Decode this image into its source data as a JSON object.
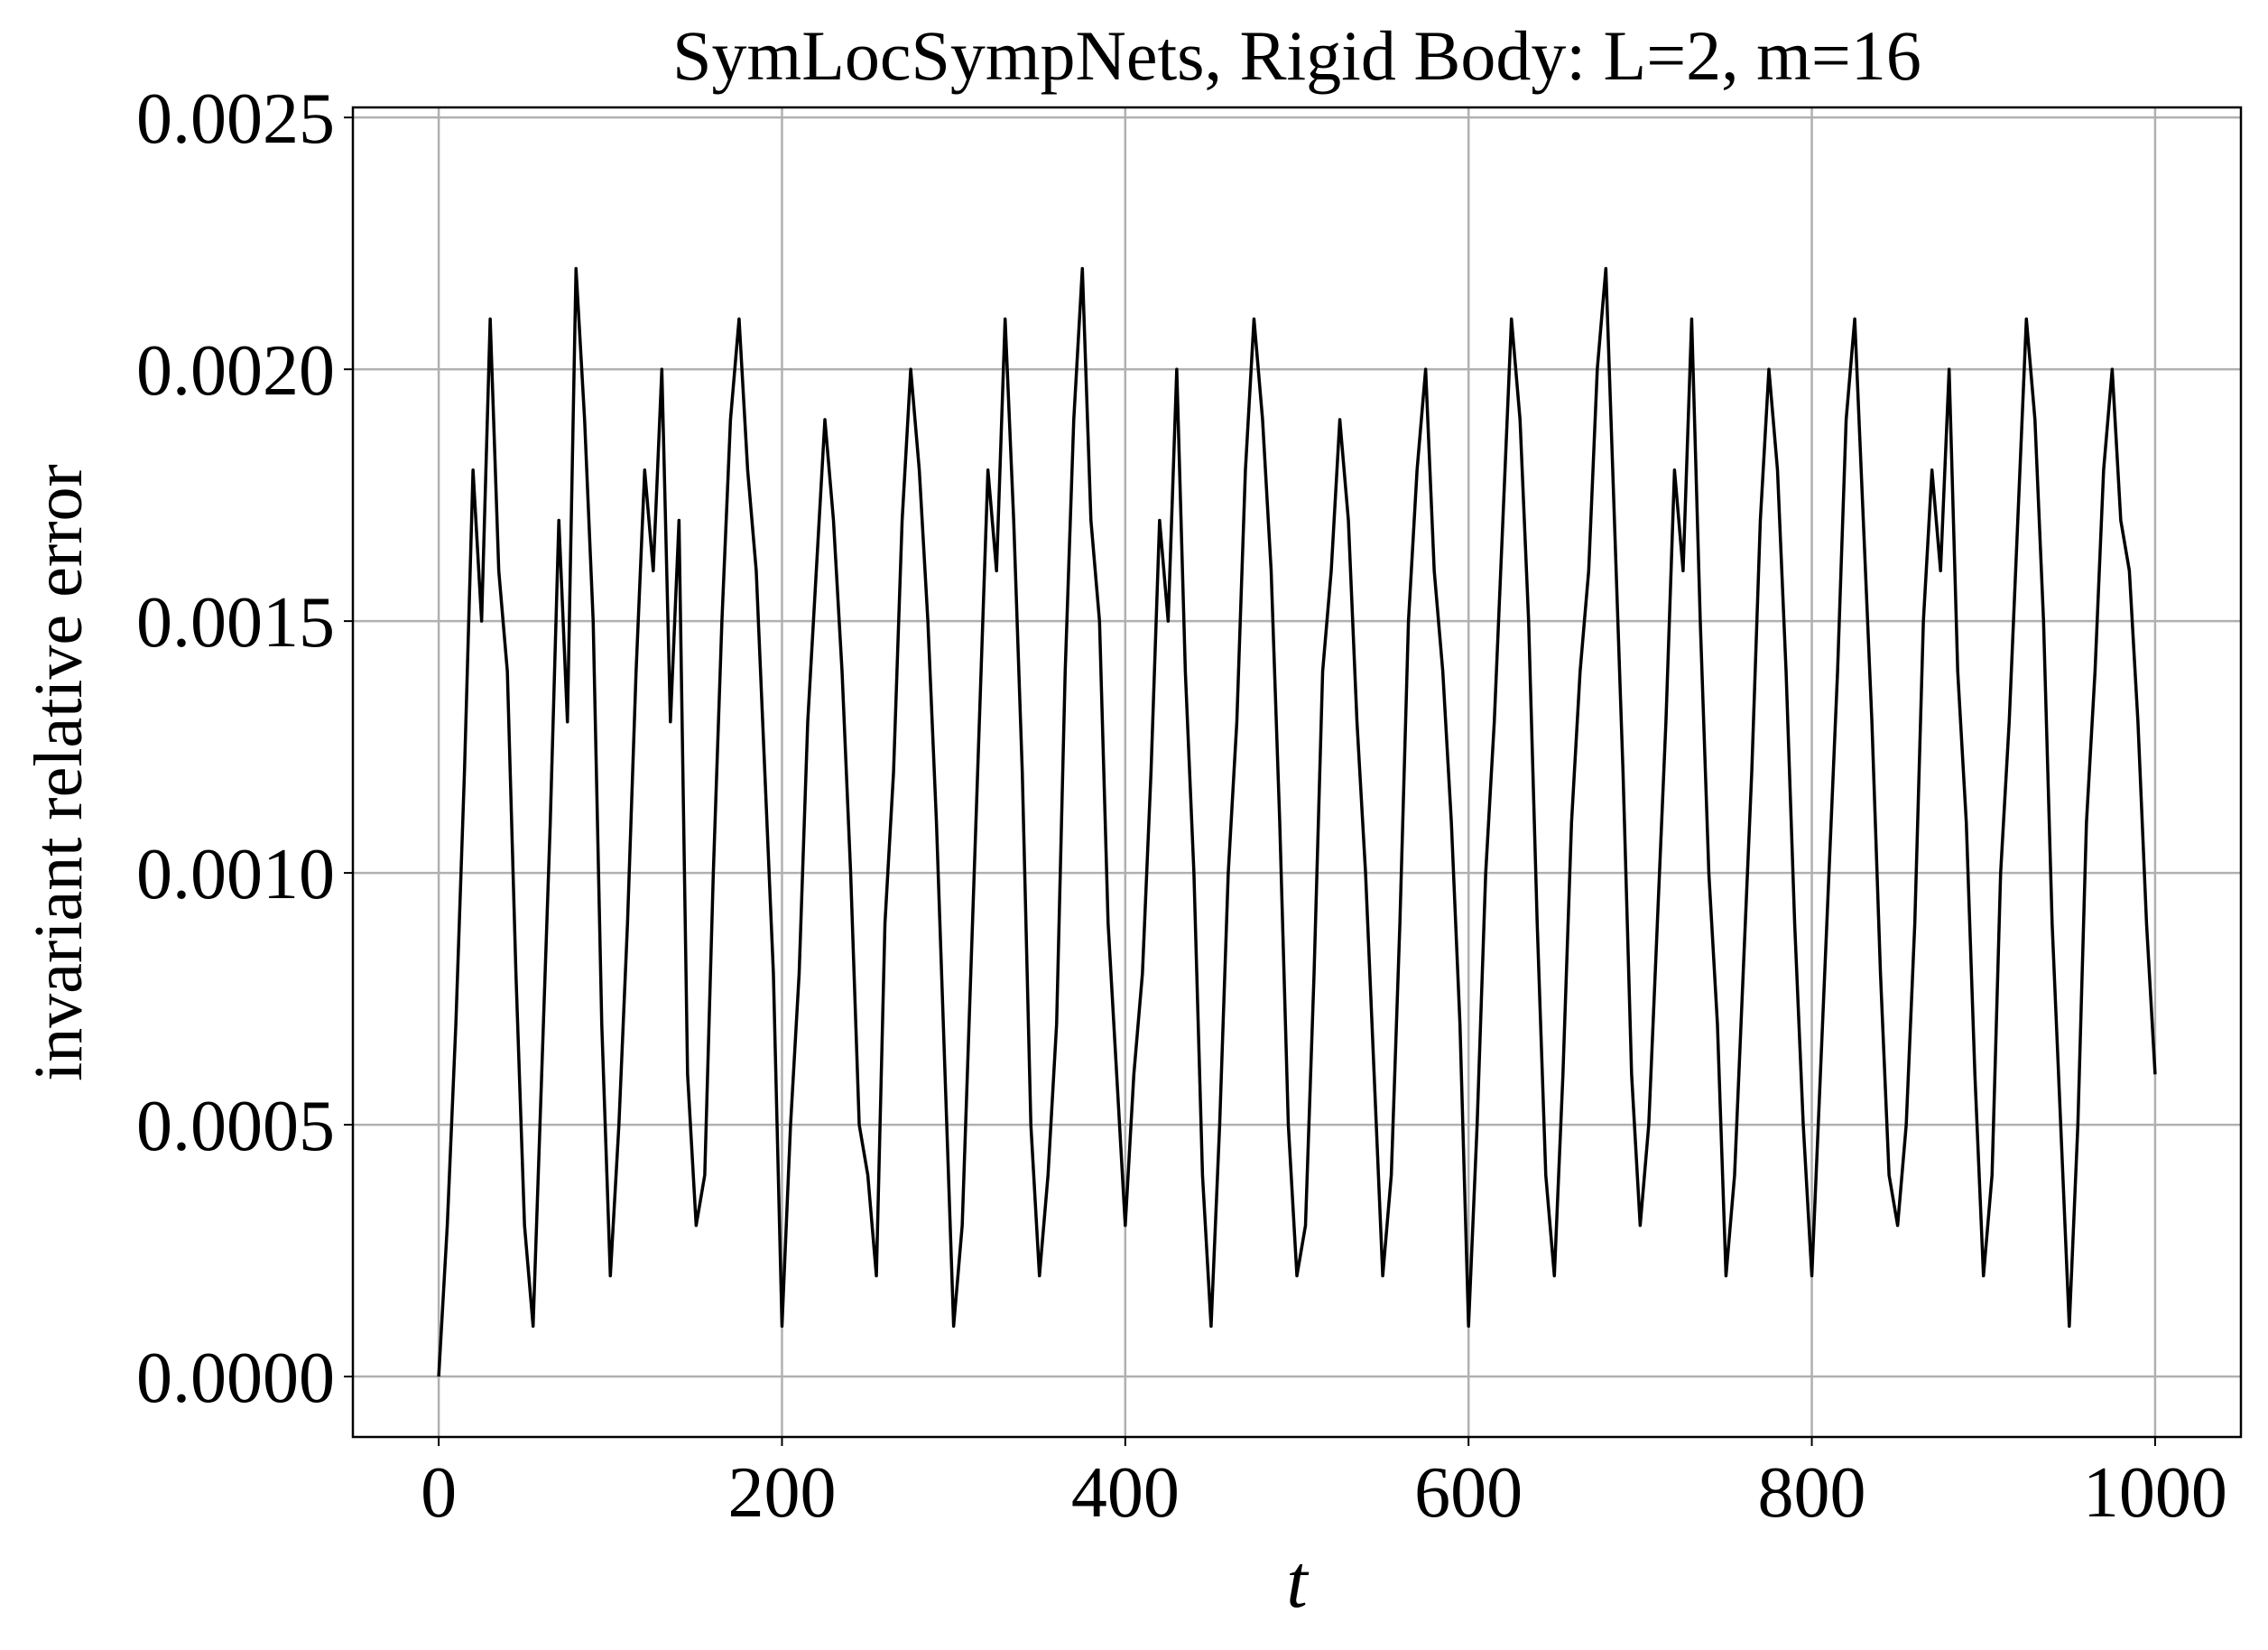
{
  "chart_data": {
    "type": "line",
    "title": "SymLocSympNets, Rigid Body: L=2, m=16",
    "x_label": "t",
    "y_label": "invariant relative error",
    "x": [
      0,
      5,
      10,
      15,
      20,
      25,
      30,
      35,
      40,
      45,
      50,
      55,
      60,
      65,
      70,
      75,
      80,
      85,
      90,
      95,
      100,
      105,
      110,
      115,
      120,
      125,
      130,
      135,
      140,
      145,
      150,
      155,
      160,
      165,
      170,
      175,
      180,
      185,
      190,
      195,
      200,
      205,
      210,
      215,
      220,
      225,
      230,
      235,
      240,
      245,
      250,
      255,
      260,
      265,
      270,
      275,
      280,
      285,
      290,
      295,
      300,
      305,
      310,
      315,
      320,
      325,
      330,
      335,
      340,
      345,
      350,
      355,
      360,
      365,
      370,
      375,
      380,
      385,
      390,
      395,
      400,
      405,
      410,
      415,
      420,
      425,
      430,
      435,
      440,
      445,
      450,
      455,
      460,
      465,
      470,
      475,
      480,
      485,
      490,
      495,
      500,
      505,
      510,
      515,
      520,
      525,
      530,
      535,
      540,
      545,
      550,
      555,
      560,
      565,
      570,
      575,
      580,
      585,
      590,
      595,
      600,
      605,
      610,
      615,
      620,
      625,
      630,
      635,
      640,
      645,
      650,
      655,
      660,
      665,
      670,
      675,
      680,
      685,
      690,
      695,
      700,
      705,
      710,
      715,
      720,
      725,
      730,
      735,
      740,
      745,
      750,
      755,
      760,
      765,
      770,
      775,
      780,
      785,
      790,
      795,
      800,
      805,
      810,
      815,
      820,
      825,
      830,
      835,
      840,
      845,
      850,
      855,
      860,
      865,
      870,
      875,
      880,
      885,
      890,
      895,
      900,
      905,
      910,
      915,
      920,
      925,
      930,
      935,
      940,
      945,
      950,
      955,
      960,
      965,
      970,
      975,
      980,
      985,
      990,
      995,
      1000
    ],
    "series": [
      {
        "name": "invariant relative error",
        "color": "#000000",
        "values": [
          0.0,
          0.0003,
          0.0007,
          0.0012,
          0.0018,
          0.0015,
          0.0021,
          0.0016,
          0.0014,
          0.0008,
          0.0003,
          0.0001,
          0.0006,
          0.0011,
          0.0017,
          0.0013,
          0.0022,
          0.0019,
          0.0015,
          0.0007,
          0.0002,
          0.0005,
          0.0009,
          0.0014,
          0.0018,
          0.0016,
          0.002,
          0.0013,
          0.0017,
          0.0006,
          0.0003,
          0.0004,
          0.001,
          0.0015,
          0.0019,
          0.0021,
          0.0018,
          0.0016,
          0.0012,
          0.0008,
          0.0001,
          0.0005,
          0.0008,
          0.0013,
          0.0016,
          0.0019,
          0.0017,
          0.0014,
          0.001,
          0.0005,
          0.0004,
          0.0002,
          0.0009,
          0.0012,
          0.0017,
          0.002,
          0.0018,
          0.0015,
          0.0011,
          0.0006,
          0.0001,
          0.0003,
          0.0008,
          0.0013,
          0.0018,
          0.0016,
          0.0021,
          0.0017,
          0.0012,
          0.0005,
          0.0002,
          0.0004,
          0.0007,
          0.0014,
          0.0019,
          0.0022,
          0.0017,
          0.0015,
          0.0009,
          0.0006,
          0.0003,
          0.0006,
          0.0008,
          0.0012,
          0.0017,
          0.0015,
          0.002,
          0.0014,
          0.001,
          0.0004,
          0.0001,
          0.0005,
          0.001,
          0.0013,
          0.0018,
          0.0021,
          0.0019,
          0.0016,
          0.0011,
          0.0005,
          0.0002,
          0.0003,
          0.0008,
          0.0014,
          0.0016,
          0.0019,
          0.0017,
          0.0013,
          0.001,
          0.0006,
          0.0002,
          0.0004,
          0.0009,
          0.0015,
          0.0018,
          0.002,
          0.0016,
          0.0014,
          0.0011,
          0.0007,
          0.0001,
          0.0005,
          0.001,
          0.0013,
          0.0017,
          0.0021,
          0.0019,
          0.0015,
          0.0009,
          0.0004,
          0.0002,
          0.0006,
          0.0011,
          0.0014,
          0.0016,
          0.002,
          0.0022,
          0.0017,
          0.0012,
          0.0006,
          0.0003,
          0.0005,
          0.0009,
          0.0013,
          0.0018,
          0.0016,
          0.0021,
          0.0015,
          0.001,
          0.0007,
          0.0002,
          0.0004,
          0.0008,
          0.0012,
          0.0017,
          0.002,
          0.0018,
          0.0014,
          0.0009,
          0.0005,
          0.0002,
          0.0006,
          0.001,
          0.0014,
          0.0019,
          0.0021,
          0.0017,
          0.0013,
          0.0008,
          0.0004,
          0.0003,
          0.0005,
          0.0009,
          0.0015,
          0.0018,
          0.0016,
          0.002,
          0.0014,
          0.0011,
          0.0006,
          0.0002,
          0.0004,
          0.001,
          0.0013,
          0.0017,
          0.0021,
          0.0019,
          0.0015,
          0.0009,
          0.0005,
          0.0001,
          0.0005,
          0.0011,
          0.0014,
          0.0018,
          0.002,
          0.0017,
          0.0016,
          0.0013,
          0.0009,
          0.0006
        ]
      }
    ],
    "xlim": [
      -50,
      1050
    ],
    "ylim": [
      -0.00012,
      0.00252
    ],
    "xticks": [
      0,
      200,
      400,
      600,
      800,
      1000
    ],
    "yticks": [
      {
        "value": 0,
        "label": "0.0000"
      },
      {
        "value": 0.0005,
        "label": "0.0005"
      },
      {
        "value": 0.001,
        "label": "0.0010"
      },
      {
        "value": 0.0015,
        "label": "0.0015"
      },
      {
        "value": 0.002,
        "label": "0.0020"
      },
      {
        "value": 0.0025,
        "label": "0.0025"
      }
    ],
    "grid": true
  }
}
